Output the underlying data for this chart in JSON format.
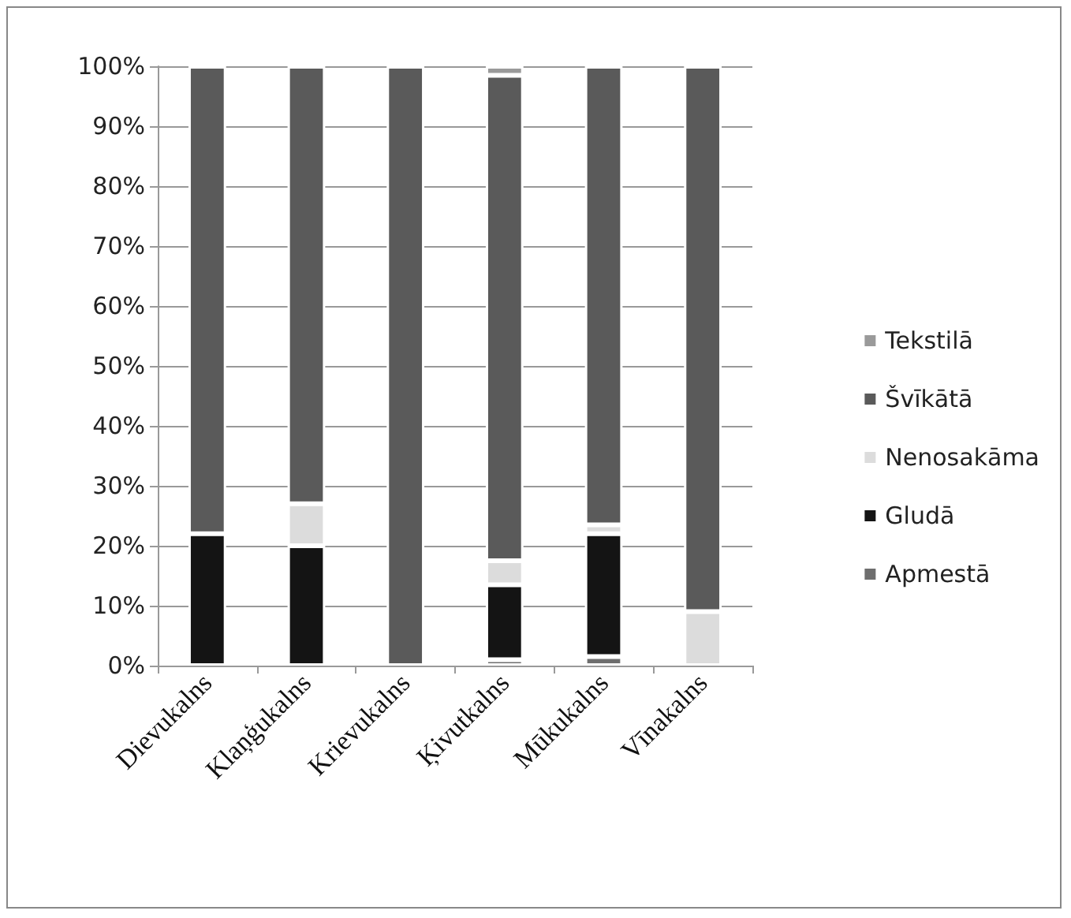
{
  "chart_data": {
    "type": "bar",
    "stacked": true,
    "categories": [
      "Dievukalns",
      "Klaņģukalns",
      "Krievukalns",
      "Ķivutkalns",
      "Mūkukalns",
      "Vīnakalns"
    ],
    "series": [
      {
        "name": "Apmestā",
        "color": "#6e6e6e",
        "values": [
          0,
          0,
          0,
          1,
          1.5,
          0
        ]
      },
      {
        "name": "Gludā",
        "color": "#141414",
        "values": [
          22,
          20,
          0,
          12.5,
          20.5,
          0
        ]
      },
      {
        "name": "Nenosakāma",
        "color": "#dcdcdc",
        "values": [
          0,
          7,
          0,
          4,
          1.5,
          9
        ]
      },
      {
        "name": "Švīkātā",
        "color": "#5a5a5a",
        "values": [
          78,
          73,
          100,
          81,
          76.5,
          91
        ]
      },
      {
        "name": "Tekstilā",
        "color": "#9a9a9a",
        "values": [
          0,
          0,
          0,
          1.5,
          0,
          0
        ]
      }
    ],
    "ylim": [
      0,
      100
    ],
    "yticks": [
      {
        "value": 0,
        "label": "0%"
      },
      {
        "value": 10,
        "label": "10%"
      },
      {
        "value": 20,
        "label": "20%"
      },
      {
        "value": 30,
        "label": "30%"
      },
      {
        "value": 40,
        "label": "40%"
      },
      {
        "value": 50,
        "label": "50%"
      },
      {
        "value": 60,
        "label": "60%"
      },
      {
        "value": 70,
        "label": "70%"
      },
      {
        "value": 80,
        "label": "80%"
      },
      {
        "value": 90,
        "label": "90%"
      },
      {
        "value": 100,
        "label": "100%"
      }
    ],
    "grid": "y",
    "legend": "right"
  }
}
